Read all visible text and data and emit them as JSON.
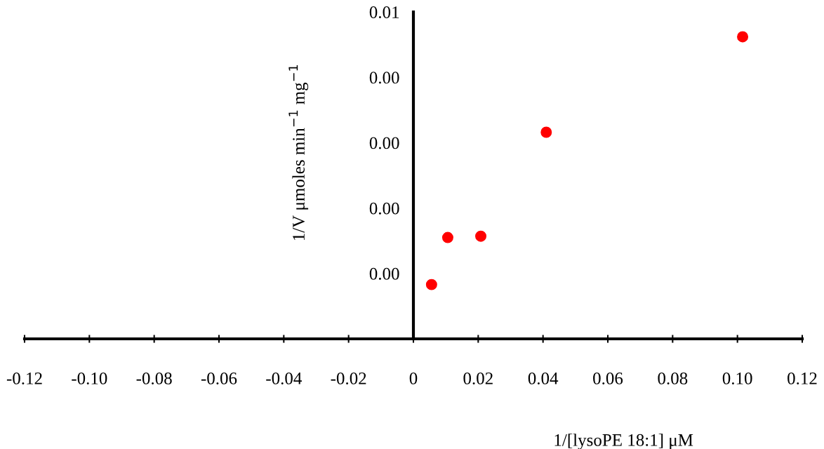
{
  "chart_data": {
    "type": "scatter",
    "xlabel": "1/[lysoPE 18:1] μM",
    "ylabel": "1/V μmoles min$^{−1}$ mg$^{−1}$",
    "x": [
      0.0056,
      0.0106,
      0.0208,
      0.041,
      0.1016
    ],
    "series": [
      {
        "color": "#ff0000",
        "values": [
          0.00083,
          0.00155,
          0.00157,
          0.00316,
          0.00462
        ]
      }
    ],
    "marker": "circle",
    "grid": false,
    "legend": false,
    "xlim": [
      -0.12,
      0.12
    ],
    "ylim": [
      0,
      0.005
    ],
    "xticks": [
      -0.12,
      {
        "value": -0.1,
        "label": "-0.10"
      },
      -0.08,
      -0.06,
      -0.04,
      -0.02,
      {
        "value": 0,
        "label": "0"
      },
      0.02,
      0.04,
      0.06,
      0.08,
      {
        "value": 0.1,
        "label": "0.10"
      },
      0.12
    ],
    "yticks": [
      {
        "value": 0.001,
        "label": "0.00"
      },
      {
        "value": 0.002,
        "label": "0.00"
      },
      {
        "value": 0.003,
        "label": "0.00"
      },
      {
        "value": 0.004,
        "label": "0.00"
      },
      {
        "value": 0.005,
        "label": "0.01"
      }
    ]
  }
}
